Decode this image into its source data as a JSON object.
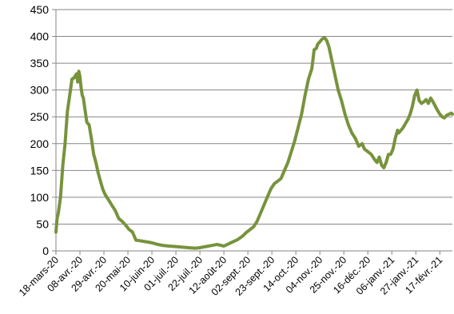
{
  "chart_data": {
    "type": "line",
    "title": "",
    "xlabel": "",
    "ylabel": "",
    "ylim": [
      0,
      450
    ],
    "yticks": [
      0,
      50,
      100,
      150,
      200,
      250,
      300,
      350,
      400,
      450
    ],
    "xlim": [
      "2020-03-18",
      "2021-02-28"
    ],
    "x_tick_labels": [
      "18-mars-20",
      "08-avr.-20",
      "29-avr.-20",
      "20-mai-20",
      "10-juin-20",
      "01-juil.-20",
      "22-juil.-20",
      "12-août-20",
      "02-sept.-20",
      "23-sept.-20",
      "14-oct.-20",
      "04-nov.-20",
      "25-nov.-20",
      "16-déc.-20",
      "06-janv.-21",
      "27-janv.-21",
      "17-févr.-21"
    ],
    "x_tick_dates": [
      "2020-03-18",
      "2020-04-08",
      "2020-04-29",
      "2020-05-20",
      "2020-06-10",
      "2020-07-01",
      "2020-07-22",
      "2020-08-12",
      "2020-09-02",
      "2020-09-23",
      "2020-10-14",
      "2020-11-04",
      "2020-11-25",
      "2020-12-16",
      "2021-01-06",
      "2021-01-27",
      "2021-02-17"
    ],
    "grid": "horizontal",
    "legend": "none",
    "line_color": "#77933c",
    "series": [
      {
        "name": "",
        "x": [
          "2020-03-18",
          "2020-03-19",
          "2020-03-20",
          "2020-03-22",
          "2020-03-24",
          "2020-03-26",
          "2020-03-28",
          "2020-03-30",
          "2020-04-01",
          "2020-04-03",
          "2020-04-05",
          "2020-04-06",
          "2020-04-07",
          "2020-04-08",
          "2020-04-09",
          "2020-04-10",
          "2020-04-11",
          "2020-04-12",
          "2020-04-14",
          "2020-04-16",
          "2020-04-18",
          "2020-04-20",
          "2020-04-22",
          "2020-04-24",
          "2020-04-26",
          "2020-04-28",
          "2020-04-30",
          "2020-05-03",
          "2020-05-06",
          "2020-05-09",
          "2020-05-12",
          "2020-05-15",
          "2020-05-18",
          "2020-05-21",
          "2020-05-24",
          "2020-05-27",
          "2020-05-30",
          "2020-06-02",
          "2020-06-05",
          "2020-06-10",
          "2020-06-15",
          "2020-06-20",
          "2020-06-25",
          "2020-07-01",
          "2020-07-06",
          "2020-07-12",
          "2020-07-18",
          "2020-07-22",
          "2020-07-27",
          "2020-08-01",
          "2020-08-06",
          "2020-08-10",
          "2020-08-12",
          "2020-08-16",
          "2020-08-20",
          "2020-08-24",
          "2020-08-28",
          "2020-09-01",
          "2020-09-04",
          "2020-09-07",
          "2020-09-10",
          "2020-09-13",
          "2020-09-16",
          "2020-09-19",
          "2020-09-22",
          "2020-09-25",
          "2020-09-28",
          "2020-10-01",
          "2020-10-04",
          "2020-10-07",
          "2020-10-10",
          "2020-10-13",
          "2020-10-16",
          "2020-10-19",
          "2020-10-22",
          "2020-10-25",
          "2020-10-28",
          "2020-10-30",
          "2020-11-01",
          "2020-11-02",
          "2020-11-04",
          "2020-11-06",
          "2020-11-08",
          "2020-11-10",
          "2020-11-12",
          "2020-11-14",
          "2020-11-16",
          "2020-11-18",
          "2020-11-20",
          "2020-11-23",
          "2020-11-26",
          "2020-11-29",
          "2020-12-02",
          "2020-12-05",
          "2020-12-08",
          "2020-12-11",
          "2020-12-13",
          "2020-12-16",
          "2020-12-19",
          "2020-12-22",
          "2020-12-24",
          "2020-12-26",
          "2020-12-28",
          "2020-12-30",
          "2021-01-01",
          "2021-01-03",
          "2021-01-05",
          "2021-01-07",
          "2021-01-09",
          "2021-01-11",
          "2021-01-12",
          "2021-01-14",
          "2021-01-16",
          "2021-01-18",
          "2021-01-20",
          "2021-01-22",
          "2021-01-24",
          "2021-01-26",
          "2021-01-28",
          "2021-01-30",
          "2021-02-01",
          "2021-02-03",
          "2021-02-05",
          "2021-02-07",
          "2021-02-09",
          "2021-02-11",
          "2021-02-13",
          "2021-02-15",
          "2021-02-17",
          "2021-02-19",
          "2021-02-21",
          "2021-02-23",
          "2021-02-25",
          "2021-02-27",
          "2021-02-28"
        ],
        "values": [
          35,
          60,
          70,
          100,
          160,
          200,
          260,
          290,
          320,
          323,
          330,
          315,
          335,
          325,
          305,
          290,
          285,
          270,
          240,
          235,
          210,
          180,
          165,
          145,
          130,
          115,
          105,
          95,
          85,
          75,
          60,
          55,
          48,
          40,
          35,
          20,
          19,
          18,
          17,
          15,
          12,
          10,
          9,
          8,
          7,
          6,
          5,
          6,
          8,
          10,
          12,
          10,
          9,
          13,
          17,
          21,
          27,
          35,
          40,
          45,
          55,
          70,
          85,
          100,
          115,
          125,
          130,
          135,
          150,
          165,
          185,
          205,
          230,
          255,
          290,
          320,
          340,
          375,
          378,
          385,
          390,
          395,
          398,
          392,
          380,
          360,
          340,
          320,
          300,
          280,
          255,
          235,
          220,
          210,
          195,
          200,
          190,
          185,
          180,
          170,
          165,
          175,
          160,
          155,
          165,
          180,
          180,
          190,
          210,
          225,
          220,
          225,
          230,
          238,
          245,
          255,
          270,
          290,
          300,
          280,
          275,
          278,
          282,
          275,
          285,
          278,
          270,
          262,
          255,
          250,
          248,
          253,
          255,
          257,
          255
        ]
      }
    ]
  }
}
